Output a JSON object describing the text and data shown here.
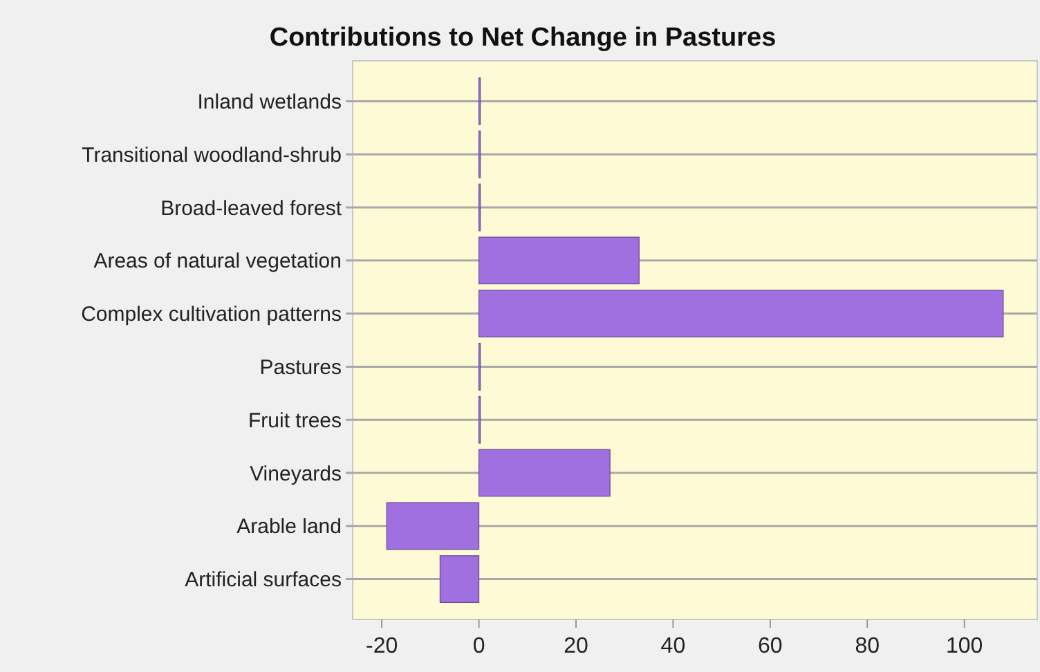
{
  "chart_data": {
    "type": "bar",
    "orientation": "horizontal",
    "title": "Contributions to Net Change in Pastures",
    "categories": [
      "Inland wetlands",
      "Transitional woodland-shrub",
      "Broad-leaved forest",
      "Areas of natural vegetation",
      "Complex cultivation patterns",
      "Pastures",
      "Fruit trees",
      "Vineyards",
      "Arable land",
      "Artificial surfaces"
    ],
    "values": [
      0,
      0,
      0,
      33,
      108,
      0,
      0,
      27,
      -19,
      -8
    ],
    "color": "#a070e0",
    "xlim": [
      -26,
      115
    ],
    "xticks": [
      -20,
      0,
      20,
      40,
      60,
      80,
      100
    ],
    "grid": "y"
  }
}
